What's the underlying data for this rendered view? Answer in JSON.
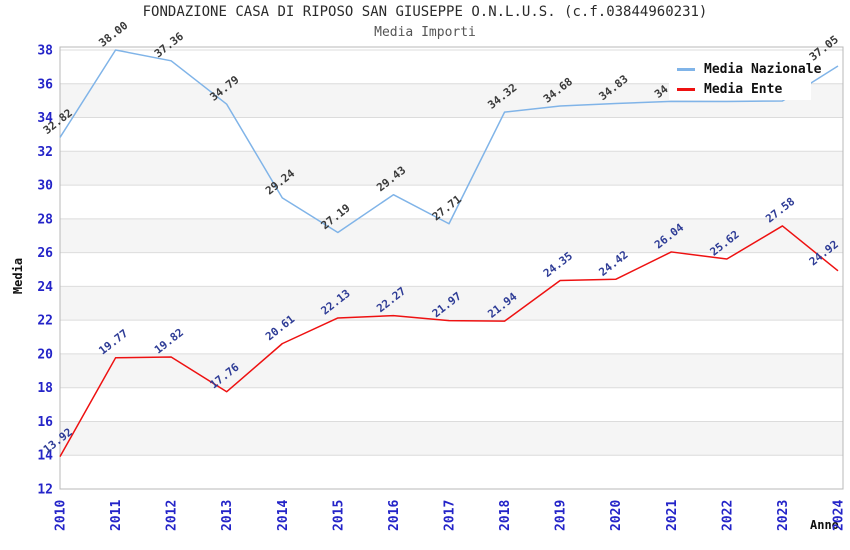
{
  "chart_data": {
    "type": "line",
    "title": "FONDAZIONE CASA DI RIPOSO SAN GIUSEPPE O.N.L.U.S. (c.f.03844960231)",
    "subtitle": "Media Importi",
    "xlabel": "Anno",
    "ylabel": "Media",
    "x": [
      "2010",
      "2011",
      "2012",
      "2013",
      "2014",
      "2015",
      "2016",
      "2017",
      "2018",
      "2019",
      "2020",
      "2021",
      "2022",
      "2023",
      "2024"
    ],
    "ylim": [
      12,
      38
    ],
    "ytick_step": 2,
    "grid": true,
    "legend_position": "top-right",
    "series": [
      {
        "name": "Media Nazionale",
        "color": "#80b4e8",
        "label_color": "#3a3a3a",
        "values": [
          32.82,
          38.0,
          37.36,
          34.79,
          29.24,
          27.19,
          29.43,
          27.71,
          34.32,
          34.68,
          34.83,
          34.96,
          34.95,
          34.98,
          37.05
        ],
        "note_estimated_indices_hidden_behind_legend": [
          11,
          12,
          13
        ]
      },
      {
        "name": "Media Ente",
        "color": "#ee1111",
        "label_color": "#2e3c96",
        "values": [
          13.92,
          19.77,
          19.82,
          17.76,
          20.61,
          22.13,
          22.27,
          21.97,
          21.94,
          24.35,
          24.42,
          26.04,
          25.62,
          27.58,
          24.92
        ]
      }
    ],
    "colors": {
      "axis_tick_labels": "#2424c8",
      "band_fill": "#f5f5f5",
      "gridline": "#dcdcdc",
      "plot_border": "#b8b8b8",
      "background": "#ffffff"
    }
  }
}
